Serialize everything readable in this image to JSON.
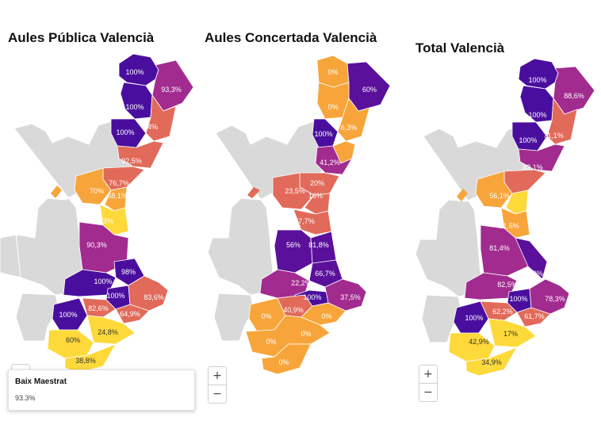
{
  "colors": {
    "land": "#d9d9d9",
    "c100": "#4a0e9e",
    "c80": "#a22b8f",
    "c60": "#e26a5a",
    "c40": "#f7a53a",
    "c20": "#fdd93a",
    "c0": "#f5a53a"
  },
  "panels": [
    {
      "id": "publica",
      "title": "Aules Pública Valencià",
      "labels": [
        "100%",
        "93,3%",
        "100%",
        "84%",
        "100%",
        "92,5%",
        "76,7%",
        "70%",
        "68,1%",
        "73%",
        "90,3%",
        "98%",
        "100%",
        "100%",
        "83,6%",
        "82,6%",
        "64,9%",
        "100%",
        "24,8%",
        "60%",
        "38,8%"
      ]
    },
    {
      "id": "concertada",
      "title": "Aules Concertada Valencià",
      "labels": [
        "0%",
        "60%",
        "0%",
        "6,3%",
        "100%",
        "41,2%",
        "20%",
        "23,5%",
        "16%",
        "37,7%",
        "56%",
        "81,8%",
        "66,7%",
        "22,2%",
        "100%",
        "37,5%",
        "0%",
        "40,9%",
        "0%",
        "0%",
        "0%",
        "0%"
      ]
    },
    {
      "id": "total",
      "title": "Total Valencià",
      "labels": [
        "100%",
        "88,6%",
        "100%",
        "71,1%",
        "100%",
        "82,1%",
        "56,1%",
        "61,5%",
        "81,4%",
        "88,9%",
        "82,5%",
        "100%",
        "78,3%",
        "100%",
        "62,2%",
        "61,7%",
        "17%",
        "42,9%",
        "34,9%"
      ]
    }
  ],
  "zoom": {
    "in": "+",
    "out": "−"
  },
  "tooltip": {
    "name": "Baix Maestrat",
    "value": "93.3%"
  }
}
